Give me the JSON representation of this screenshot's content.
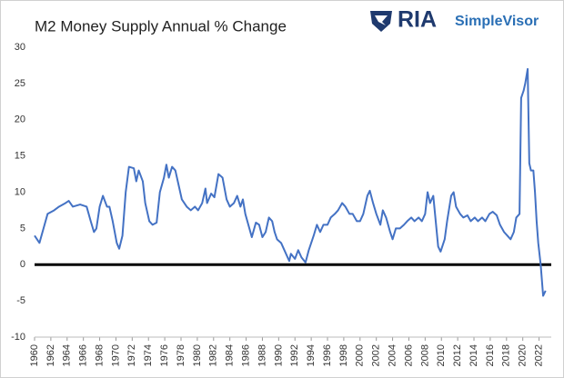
{
  "brand": {
    "name": "RIA",
    "product": "SimpleVisor"
  },
  "chart_data": {
    "type": "line",
    "title": "M2 Money Supply Annual % Change",
    "x": [
      1960,
      1960.6,
      1961.1,
      1961.6,
      1962.4,
      1963,
      1963.8,
      1964.2,
      1964.7,
      1965.6,
      1966.4,
      1966.9,
      1967.3,
      1967.6,
      1968,
      1968.4,
      1968.9,
      1969.2,
      1969.6,
      1970.1,
      1970.4,
      1970.8,
      1971.2,
      1971.6,
      1972.2,
      1972.5,
      1972.8,
      1973.3,
      1973.6,
      1974.1,
      1974.5,
      1975,
      1975.4,
      1975.9,
      1976.2,
      1976.5,
      1976.9,
      1977.3,
      1977.7,
      1978.1,
      1978.7,
      1979.2,
      1979.7,
      1980.1,
      1980.6,
      1981,
      1981.2,
      1981.7,
      1982.1,
      1982.6,
      1983.1,
      1983.6,
      1984,
      1984.5,
      1984.9,
      1985.3,
      1985.6,
      1985.9,
      1986.4,
      1986.7,
      1987.2,
      1987.6,
      1988,
      1988.4,
      1988.8,
      1989.2,
      1989.5,
      1989.8,
      1990.3,
      1990.7,
      1991.3,
      1991.5,
      1992,
      1992.4,
      1992.8,
      1993.3,
      1993.7,
      1994.3,
      1994.7,
      1995.1,
      1995.5,
      1996,
      1996.4,
      1996.9,
      1997.3,
      1997.8,
      1998.2,
      1998.7,
      1999.1,
      1999.6,
      2000,
      2000.4,
      2000.9,
      2001.2,
      2001.6,
      2002,
      2002.5,
      2002.8,
      2003.2,
      2003.7,
      2004,
      2004.4,
      2004.9,
      2005.4,
      2005.8,
      2006.3,
      2006.7,
      2007.2,
      2007.6,
      2008,
      2008.3,
      2008.6,
      2009,
      2009.3,
      2009.6,
      2009.9,
      2010.4,
      2010.7,
      2011.2,
      2011.5,
      2011.8,
      2012.3,
      2012.7,
      2013.2,
      2013.6,
      2014.1,
      2014.5,
      2015,
      2015.4,
      2015.9,
      2016.3,
      2016.8,
      2017.2,
      2017.7,
      2018.1,
      2018.5,
      2018.9,
      2019.2,
      2019.6,
      2019.8,
      2020.1,
      2020.3,
      2020.6,
      2020.8,
      2021,
      2021.3,
      2021.5,
      2021.7,
      2021.9,
      2022.2,
      2022.5,
      2022.8
    ],
    "series": [
      {
        "name": "M2 Money Supply Annual % Change",
        "color": "#4472c4",
        "values": [
          4,
          3,
          5,
          7,
          7.5,
          8,
          8.5,
          8.8,
          8,
          8.3,
          8,
          6,
          4.5,
          5,
          8,
          9.5,
          8,
          8,
          6,
          3,
          2.2,
          4,
          10,
          13.5,
          13.3,
          11.5,
          13,
          11.5,
          8.5,
          6,
          5.5,
          5.8,
          10,
          12,
          13.8,
          12,
          13.5,
          13,
          11,
          9,
          8,
          7.5,
          8,
          7.5,
          8.5,
          10.5,
          8.5,
          9.8,
          9.3,
          12.5,
          12,
          9,
          8,
          8.5,
          9.5,
          8,
          9,
          7,
          5,
          3.8,
          5.8,
          5.5,
          3.8,
          4.5,
          6.5,
          6,
          4.5,
          3.5,
          3,
          2,
          0.5,
          1.5,
          0.8,
          2,
          1,
          0.3,
          2,
          4,
          5.5,
          4.5,
          5.5,
          5.5,
          6.5,
          7,
          7.5,
          8.5,
          8,
          7,
          7,
          6,
          6,
          7,
          9.5,
          10.2,
          8.5,
          7,
          5.5,
          7.5,
          6.5,
          4.5,
          3.5,
          5,
          5,
          5.5,
          6,
          6.5,
          6,
          6.5,
          6,
          7,
          10,
          8.5,
          9.5,
          6,
          2.5,
          1.8,
          3.5,
          6,
          9.5,
          10,
          8,
          7,
          6.5,
          6.8,
          6,
          6.5,
          6,
          6.5,
          6,
          7,
          7.3,
          6.8,
          5.5,
          4.5,
          4,
          3.5,
          4.5,
          6.5,
          7,
          23,
          24,
          25,
          27,
          14,
          13,
          13,
          10,
          6,
          3,
          0,
          -4.3,
          -3.6
        ]
      }
    ],
    "xlim": [
      1960,
      2023.5
    ],
    "xticks": [
      1960,
      1962,
      1964,
      1966,
      1968,
      1970,
      1972,
      1974,
      1976,
      1978,
      1980,
      1982,
      1984,
      1986,
      1988,
      1990,
      1992,
      1994,
      1996,
      1998,
      2000,
      2002,
      2004,
      2006,
      2008,
      2010,
      2012,
      2014,
      2016,
      2018,
      2020,
      2022
    ],
    "ylim": [
      -10,
      30
    ],
    "yticks": [
      -10,
      -5,
      0,
      5,
      10,
      15,
      20,
      25,
      30
    ],
    "grid": false,
    "zero_line": true
  }
}
